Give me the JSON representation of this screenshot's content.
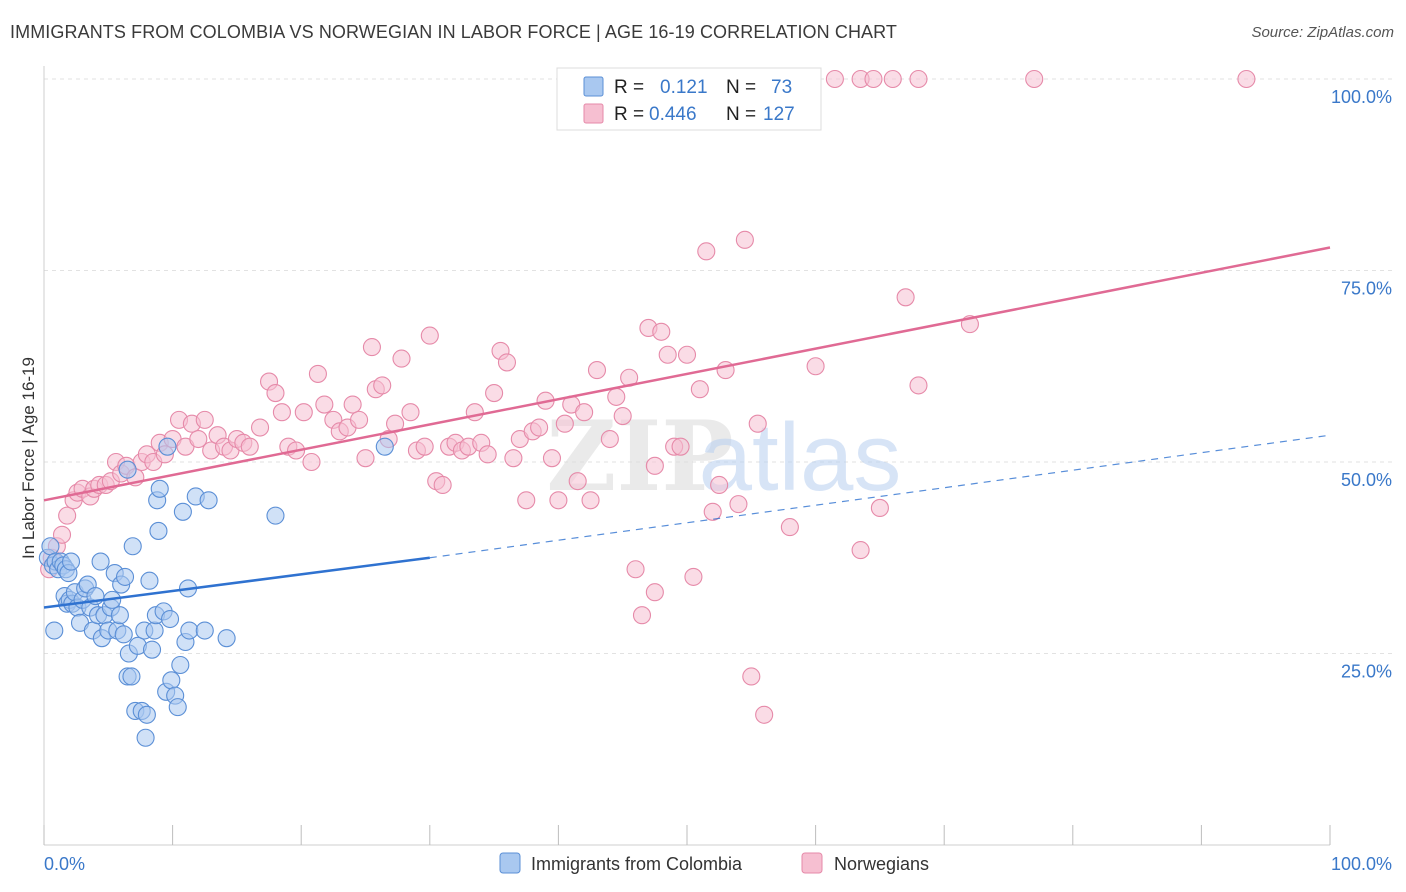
{
  "title": "IMMIGRANTS FROM COLOMBIA VS NORWEGIAN IN LABOR FORCE | AGE 16-19 CORRELATION CHART",
  "source": "Source: ZipAtlas.com",
  "watermark": {
    "zip": "ZIP",
    "atlas": "atlas"
  },
  "colors": {
    "colombia_fill": "#a9c8f0",
    "colombia_stroke": "#5b8fd6",
    "colombia_line": "#2f72d0",
    "norway_fill": "#f6bfd1",
    "norway_stroke": "#e68aa9",
    "norway_line": "#e06a94",
    "grid": "#e2e2e2",
    "axis_text": "#3a78c9"
  },
  "stats": [
    {
      "r_label": "R =",
      "r_value": "0.121",
      "n_label": "N =",
      "n_value": "73",
      "series": "colombia"
    },
    {
      "r_label": "R =",
      "r_value": "0.446",
      "n_label": "N =",
      "n_value": "127",
      "series": "norway"
    }
  ],
  "chart_data": {
    "type": "scatter",
    "title": "IMMIGRANTS FROM COLOMBIA VS NORWEGIAN IN LABOR FORCE | AGE 16-19 CORRELATION CHART",
    "xlabel": "",
    "ylabel": "In Labor Force | Age 16-19",
    "xlim": [
      0,
      100
    ],
    "ylim": [
      0,
      100
    ],
    "x_tick_labels": [
      "0.0%",
      "100.0%"
    ],
    "y_tick_labels": [
      "25.0%",
      "50.0%",
      "75.0%",
      "100.0%"
    ],
    "y_ticks": [
      25,
      50,
      75,
      100
    ],
    "grid": true,
    "legend_position": "bottom",
    "series": [
      {
        "name": "Immigrants from Colombia",
        "key": "colombia",
        "trend": {
          "x0": 0,
          "y0": 31.0,
          "x1": 30,
          "y1": 37.5,
          "dashed_to_x": 100,
          "dashed_to_y": 53.5
        },
        "points": [
          [
            0.3,
            37.5
          ],
          [
            0.5,
            39.0
          ],
          [
            0.7,
            36.5
          ],
          [
            0.9,
            37.0
          ],
          [
            1.1,
            36.0
          ],
          [
            1.3,
            37.0
          ],
          [
            1.5,
            36.5
          ],
          [
            1.7,
            36.0
          ],
          [
            1.9,
            35.5
          ],
          [
            2.1,
            37.0
          ],
          [
            0.8,
            28.0
          ],
          [
            1.6,
            32.5
          ],
          [
            1.8,
            31.5
          ],
          [
            2.0,
            32.0
          ],
          [
            2.2,
            31.5
          ],
          [
            2.4,
            33.0
          ],
          [
            2.6,
            31.0
          ],
          [
            2.8,
            29.0
          ],
          [
            3.0,
            32.0
          ],
          [
            3.2,
            33.5
          ],
          [
            3.4,
            34.0
          ],
          [
            3.6,
            31.0
          ],
          [
            3.8,
            28.0
          ],
          [
            4.0,
            32.5
          ],
          [
            4.2,
            30.0
          ],
          [
            4.4,
            37.0
          ],
          [
            4.5,
            27.0
          ],
          [
            4.7,
            30.0
          ],
          [
            5.0,
            28.0
          ],
          [
            5.2,
            31.0
          ],
          [
            5.3,
            32.0
          ],
          [
            5.5,
            35.5
          ],
          [
            5.7,
            28.0
          ],
          [
            5.9,
            30.0
          ],
          [
            6.0,
            34.0
          ],
          [
            6.2,
            27.5
          ],
          [
            6.3,
            35.0
          ],
          [
            6.5,
            22.0
          ],
          [
            6.6,
            25.0
          ],
          [
            6.8,
            22.0
          ],
          [
            6.9,
            39.0
          ],
          [
            7.1,
            17.5
          ],
          [
            7.3,
            26.0
          ],
          [
            7.6,
            17.5
          ],
          [
            7.8,
            28.0
          ],
          [
            8.0,
            17.0
          ],
          [
            7.9,
            14.0
          ],
          [
            8.2,
            34.5
          ],
          [
            8.4,
            25.5
          ],
          [
            8.6,
            28.0
          ],
          [
            8.7,
            30.0
          ],
          [
            8.9,
            41.0
          ],
          [
            8.8,
            45.0
          ],
          [
            9.0,
            46.5
          ],
          [
            9.3,
            30.5
          ],
          [
            9.5,
            20.0
          ],
          [
            9.8,
            29.5
          ],
          [
            9.9,
            21.5
          ],
          [
            10.2,
            19.5
          ],
          [
            10.4,
            18.0
          ],
          [
            10.6,
            23.5
          ],
          [
            10.8,
            43.5
          ],
          [
            11.0,
            26.5
          ],
          [
            11.2,
            33.5
          ],
          [
            11.3,
            28.0
          ],
          [
            11.8,
            45.5
          ],
          [
            12.5,
            28.0
          ],
          [
            12.8,
            45.0
          ],
          [
            14.2,
            27.0
          ],
          [
            9.6,
            52.0
          ],
          [
            18.0,
            43.0
          ],
          [
            26.5,
            52.0
          ],
          [
            6.5,
            49.0
          ]
        ]
      },
      {
        "name": "Norwegians",
        "key": "norway",
        "trend": {
          "x0": 0,
          "y0": 45.0,
          "x1": 100,
          "y1": 78.0
        },
        "points": [
          [
            0.4,
            36.0
          ],
          [
            0.6,
            37.5
          ],
          [
            1.0,
            39.0
          ],
          [
            1.4,
            40.5
          ],
          [
            1.8,
            43.0
          ],
          [
            2.3,
            45.0
          ],
          [
            2.6,
            46.0
          ],
          [
            3.0,
            46.5
          ],
          [
            3.6,
            45.5
          ],
          [
            3.9,
            46.5
          ],
          [
            4.3,
            47.0
          ],
          [
            4.8,
            47.0
          ],
          [
            5.2,
            47.5
          ],
          [
            5.6,
            50.0
          ],
          [
            6.0,
            48.5
          ],
          [
            6.4,
            49.5
          ],
          [
            7.1,
            48.0
          ],
          [
            7.6,
            50.0
          ],
          [
            8.0,
            51.0
          ],
          [
            8.5,
            50.0
          ],
          [
            9.0,
            52.5
          ],
          [
            9.4,
            51.0
          ],
          [
            10.0,
            53.0
          ],
          [
            10.5,
            55.5
          ],
          [
            11.0,
            52.0
          ],
          [
            11.5,
            55.0
          ],
          [
            12.0,
            53.0
          ],
          [
            12.5,
            55.5
          ],
          [
            13.0,
            51.5
          ],
          [
            13.5,
            53.5
          ],
          [
            14.0,
            52.0
          ],
          [
            14.5,
            51.5
          ],
          [
            15.0,
            53.0
          ],
          [
            15.5,
            52.5
          ],
          [
            16.0,
            52.0
          ],
          [
            16.8,
            54.5
          ],
          [
            17.5,
            60.5
          ],
          [
            18.0,
            59.0
          ],
          [
            18.5,
            56.5
          ],
          [
            19.0,
            52.0
          ],
          [
            19.6,
            51.5
          ],
          [
            20.2,
            56.5
          ],
          [
            20.8,
            50.0
          ],
          [
            21.3,
            61.5
          ],
          [
            21.8,
            57.5
          ],
          [
            22.5,
            55.5
          ],
          [
            23.0,
            54.0
          ],
          [
            23.6,
            54.5
          ],
          [
            24.0,
            57.5
          ],
          [
            24.5,
            55.5
          ],
          [
            25.0,
            50.5
          ],
          [
            25.5,
            65.0
          ],
          [
            25.8,
            59.5
          ],
          [
            26.3,
            60.0
          ],
          [
            26.8,
            53.0
          ],
          [
            27.3,
            55.0
          ],
          [
            27.8,
            63.5
          ],
          [
            28.5,
            56.5
          ],
          [
            29.0,
            51.5
          ],
          [
            29.6,
            52.0
          ],
          [
            30.0,
            66.5
          ],
          [
            30.5,
            47.5
          ],
          [
            31.0,
            47.0
          ],
          [
            31.5,
            52.0
          ],
          [
            32.0,
            52.5
          ],
          [
            32.5,
            51.5
          ],
          [
            33.0,
            52.0
          ],
          [
            33.5,
            56.5
          ],
          [
            34.0,
            52.5
          ],
          [
            34.5,
            51.0
          ],
          [
            35.0,
            59.0
          ],
          [
            35.5,
            64.5
          ],
          [
            36.0,
            63.0
          ],
          [
            36.5,
            50.5
          ],
          [
            37.0,
            53.0
          ],
          [
            37.5,
            45.0
          ],
          [
            38.0,
            54.0
          ],
          [
            38.5,
            54.5
          ],
          [
            39.0,
            58.0
          ],
          [
            39.5,
            50.5
          ],
          [
            40.0,
            45.0
          ],
          [
            40.5,
            55.0
          ],
          [
            41.0,
            57.5
          ],
          [
            41.5,
            47.5
          ],
          [
            42.0,
            56.5
          ],
          [
            42.5,
            45.0
          ],
          [
            43.0,
            62.0
          ],
          [
            44.0,
            53.0
          ],
          [
            44.5,
            58.5
          ],
          [
            45.0,
            56.0
          ],
          [
            45.5,
            61.0
          ],
          [
            46.0,
            36.0
          ],
          [
            46.5,
            30.0
          ],
          [
            47.0,
            67.5
          ],
          [
            47.5,
            49.5
          ],
          [
            48.0,
            67.0
          ],
          [
            48.5,
            64.0
          ],
          [
            49.0,
            52.0
          ],
          [
            49.5,
            52.0
          ],
          [
            50.0,
            64.0
          ],
          [
            50.5,
            35.0
          ],
          [
            51.0,
            59.5
          ],
          [
            51.5,
            77.5
          ],
          [
            52.0,
            43.5
          ],
          [
            52.5,
            47.0
          ],
          [
            53.0,
            62.0
          ],
          [
            54.0,
            44.5
          ],
          [
            54.5,
            79.0
          ],
          [
            55.0,
            22.0
          ],
          [
            55.5,
            55.0
          ],
          [
            56.0,
            17.0
          ],
          [
            58.0,
            41.5
          ],
          [
            60.0,
            62.5
          ],
          [
            63.5,
            38.5
          ],
          [
            65.0,
            44.0
          ],
          [
            67.0,
            71.5
          ],
          [
            68.0,
            60.0
          ],
          [
            72.0,
            68.0
          ],
          [
            47.5,
            33.0
          ],
          [
            61.5,
            100
          ],
          [
            63.5,
            100
          ],
          [
            64.5,
            100
          ],
          [
            66.0,
            100
          ],
          [
            68.0,
            100
          ],
          [
            77.0,
            100
          ],
          [
            93.5,
            100
          ]
        ]
      }
    ]
  }
}
